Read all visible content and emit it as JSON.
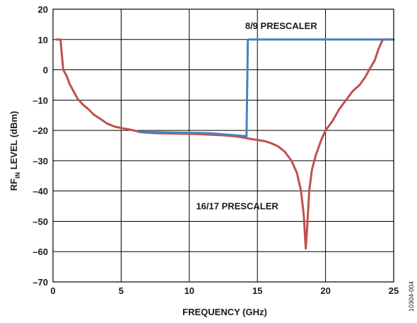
{
  "figure_id": "10304-004",
  "colors": {
    "series_8_9": "#4a80c0",
    "series_16_17": "#c0504d",
    "grid": "#000000"
  },
  "chart_data": {
    "type": "line",
    "xlabel": "FREQUENCY (GHz)",
    "ylabel_main": "RF",
    "ylabel_sub": "IN",
    "ylabel_rest": " LEVEL (dBm)",
    "xlim": [
      0,
      25
    ],
    "ylim": [
      -70,
      20
    ],
    "x_ticks": [
      0,
      5,
      10,
      15,
      20,
      25
    ],
    "y_ticks": [
      20,
      10,
      0,
      -10,
      -20,
      -30,
      -40,
      -50,
      -60,
      -70
    ],
    "grid": true,
    "series": [
      {
        "name": "8/9 PRESCALER",
        "color": "#4a80c0",
        "points": [
          [
            6.3,
            -20.5
          ],
          [
            11.4,
            -20.9
          ],
          [
            14.2,
            -21.9
          ],
          [
            14.3,
            10
          ],
          [
            25,
            10
          ]
        ]
      },
      {
        "name": "16/17 PRESCALER",
        "color": "#c0504d",
        "points": [
          [
            0.25,
            10
          ],
          [
            0.55,
            10
          ],
          [
            0.65,
            5
          ],
          [
            0.75,
            0
          ],
          [
            1.0,
            -2
          ],
          [
            1.2,
            -4.5
          ],
          [
            1.5,
            -7
          ],
          [
            1.8,
            -9.5
          ],
          [
            2.2,
            -11.5
          ],
          [
            2.6,
            -13
          ],
          [
            3.0,
            -14.8
          ],
          [
            3.5,
            -16.3
          ],
          [
            4.0,
            -17.8
          ],
          [
            4.5,
            -18.7
          ],
          [
            5.0,
            -19.2
          ],
          [
            5.5,
            -19.6
          ],
          [
            6.0,
            -20.1
          ],
          [
            6.5,
            -20.6
          ],
          [
            7.5,
            -20.9
          ],
          [
            8.5,
            -21.0
          ],
          [
            9.5,
            -21.1
          ],
          [
            10.5,
            -21.2
          ],
          [
            11.5,
            -21.4
          ],
          [
            12.5,
            -21.6
          ],
          [
            13.5,
            -22.0
          ],
          [
            14.5,
            -22.8
          ],
          [
            15.5,
            -23.5
          ],
          [
            16.0,
            -24.2
          ],
          [
            16.5,
            -25.2
          ],
          [
            17.0,
            -27.0
          ],
          [
            17.5,
            -30.0
          ],
          [
            17.9,
            -34.0
          ],
          [
            18.2,
            -40.0
          ],
          [
            18.4,
            -48.0
          ],
          [
            18.55,
            -59.0
          ],
          [
            18.65,
            -52.0
          ],
          [
            18.8,
            -40.0
          ],
          [
            19.0,
            -33.0
          ],
          [
            19.3,
            -28.0
          ],
          [
            19.7,
            -23.0
          ],
          [
            20.0,
            -20.0
          ],
          [
            20.5,
            -17.0
          ],
          [
            21.0,
            -13.0
          ],
          [
            21.5,
            -10.0
          ],
          [
            22.0,
            -7.0
          ],
          [
            22.5,
            -5.0
          ],
          [
            22.9,
            -2.5
          ],
          [
            23.2,
            0
          ],
          [
            23.6,
            3.0
          ],
          [
            23.9,
            7.0
          ],
          [
            24.2,
            10.0
          ],
          [
            25.0,
            10.0
          ]
        ]
      }
    ],
    "annotations": [
      {
        "text": "8/9 PRESCALER",
        "series": 0,
        "anchor_x": 14.1,
        "anchor_y": 13.5
      },
      {
        "text": "16/17 PRESCALER",
        "series": 1,
        "anchor_x": 10.5,
        "anchor_y": -46.0
      }
    ]
  }
}
